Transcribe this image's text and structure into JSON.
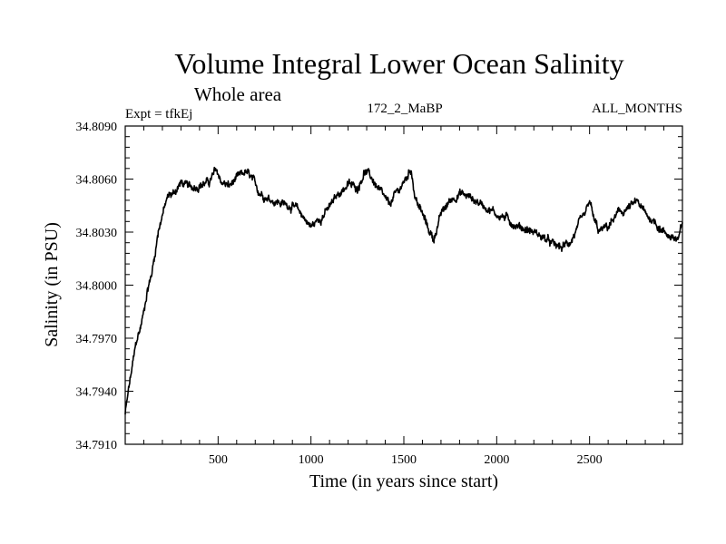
{
  "chart_data": {
    "type": "line",
    "title": "Volume Integral Lower Ocean Salinity",
    "subtitle": "Whole area",
    "annotation_left": "Expt = tfkEj",
    "annotation_center": "172_2_MaBP",
    "annotation_right": "ALL_MONTHS",
    "xlabel": "Time (in years since start)",
    "ylabel": "Salinity (in PSU)",
    "xlim": [
      0,
      3000
    ],
    "ylim": [
      34.791,
      34.809
    ],
    "x_ticks": [
      500,
      1000,
      1500,
      2000,
      2500
    ],
    "x_tick_labels": [
      "500",
      "1000",
      "1500",
      "2000",
      "2500"
    ],
    "y_ticks": [
      34.791,
      34.794,
      34.797,
      34.8,
      34.803,
      34.806,
      34.809
    ],
    "y_tick_labels": [
      "34.7910",
      "34.7940",
      "34.7970",
      "34.8000",
      "34.8030",
      "34.8060",
      "34.8090"
    ],
    "grid": false,
    "line_color": "#000000",
    "series": [
      {
        "x": [
          0,
          20,
          40,
          60,
          80,
          100,
          120,
          140,
          160,
          180,
          200,
          230,
          260,
          300,
          350,
          400,
          450,
          490,
          520,
          560,
          600,
          650,
          680,
          720,
          760,
          800,
          850,
          900,
          950,
          1000,
          1050,
          1100,
          1150,
          1200,
          1250,
          1290,
          1330,
          1370,
          1420,
          1460,
          1500,
          1540,
          1560,
          1600,
          1640,
          1660,
          1700,
          1750,
          1800,
          1850,
          1900,
          1950,
          2000,
          2050,
          2100,
          2150,
          2200,
          2250,
          2300,
          2350,
          2400,
          2450,
          2480,
          2500,
          2520,
          2550,
          2600,
          2650,
          2700,
          2730,
          2760,
          2800,
          2850,
          2900,
          2950,
          2980,
          3000
        ],
        "y": [
          34.7927,
          34.7942,
          34.7955,
          34.7968,
          34.7975,
          34.7985,
          34.7998,
          34.8005,
          34.8018,
          34.8032,
          34.804,
          34.805,
          34.8052,
          34.8058,
          34.8055,
          34.8057,
          34.8058,
          34.8065,
          34.8058,
          34.8056,
          34.806,
          34.8064,
          34.806,
          34.8053,
          34.805,
          34.8048,
          34.8046,
          34.8045,
          34.804,
          34.8033,
          34.8038,
          34.8044,
          34.8052,
          34.8057,
          34.8055,
          34.8065,
          34.806,
          34.8053,
          34.8045,
          34.8052,
          34.8058,
          34.8066,
          34.805,
          34.804,
          34.803,
          34.8026,
          34.804,
          34.8048,
          34.8052,
          34.805,
          34.8047,
          34.8044,
          34.804,
          34.8038,
          34.8034,
          34.8032,
          34.803,
          34.8027,
          34.8023,
          34.8021,
          34.8025,
          34.8035,
          34.804,
          34.8048,
          34.8038,
          34.803,
          34.8033,
          34.804,
          34.8043,
          34.8045,
          34.8047,
          34.804,
          34.8036,
          34.803,
          34.8027,
          34.8025,
          34.8036
        ]
      }
    ]
  }
}
